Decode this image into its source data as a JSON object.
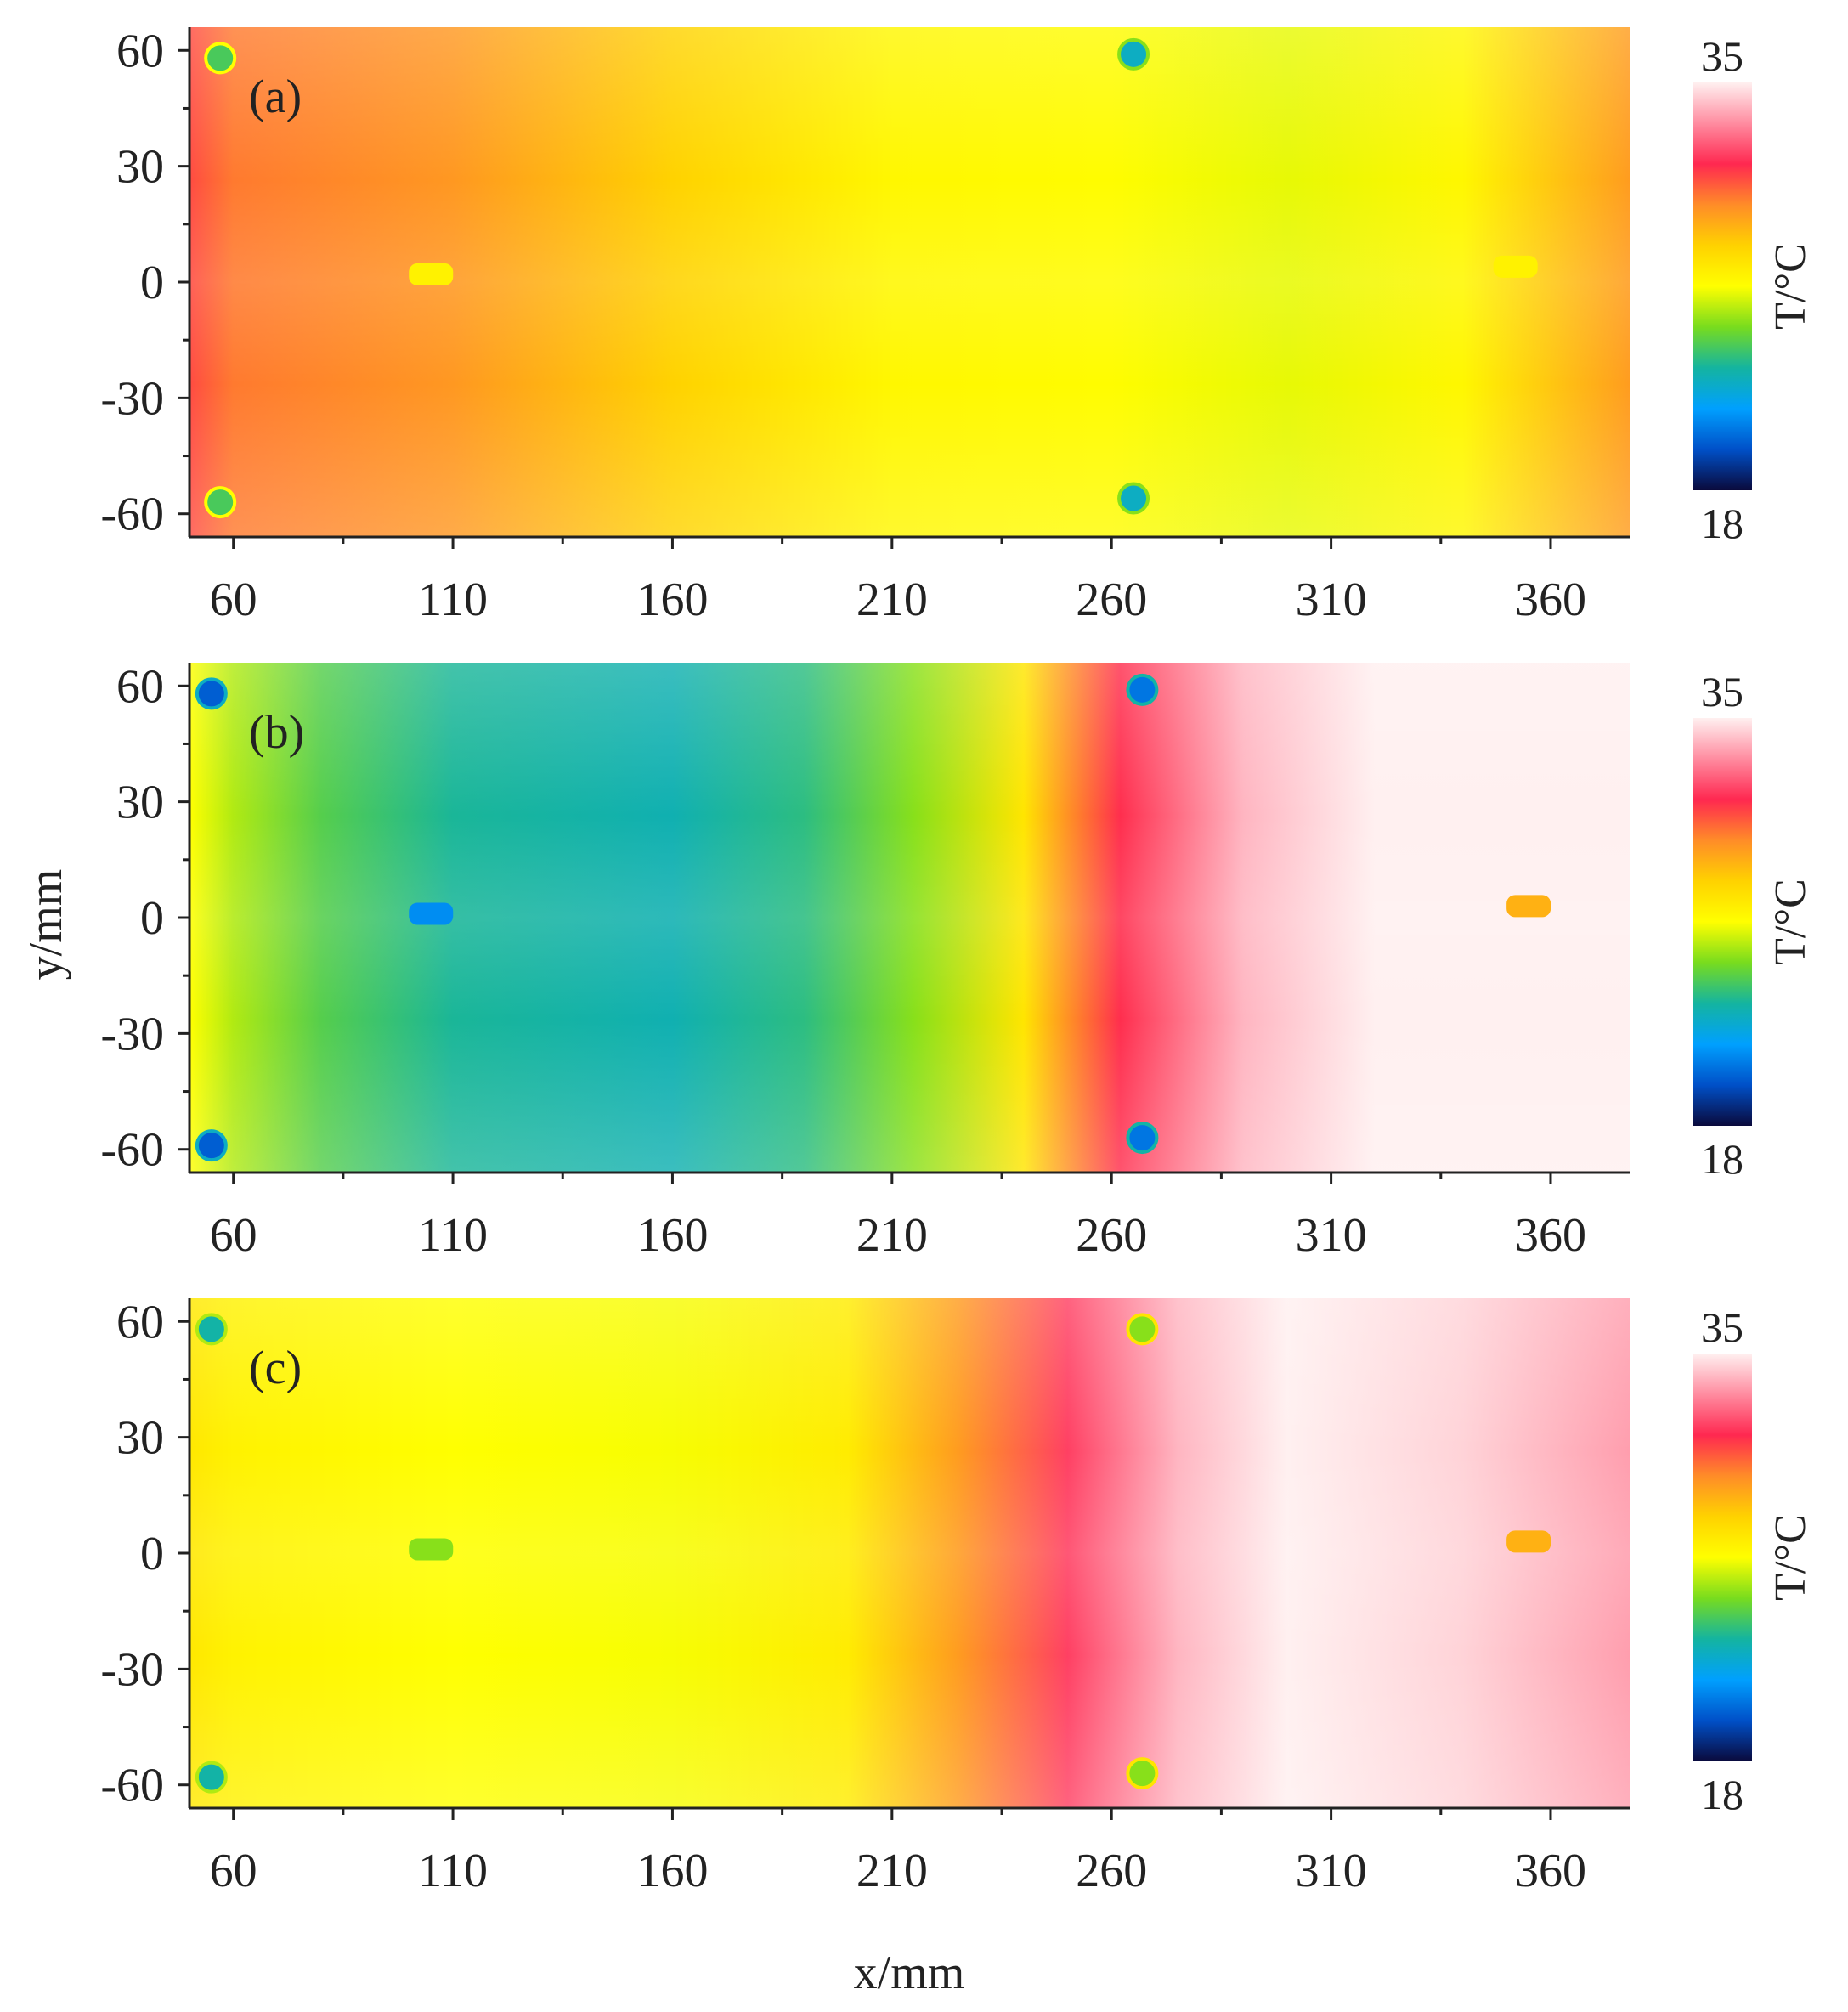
{
  "figure": {
    "xlabel": "x/mm",
    "ylabel": "y/mm"
  },
  "colors": {
    "colormap": [
      "#0a0a3c",
      "#0050c8",
      "#00a0ff",
      "#14b4a0",
      "#78dc1e",
      "#ffff00",
      "#ffd200",
      "#ff8c28",
      "#ff2850",
      "#ff8ca0",
      "#fff0f0"
    ]
  },
  "chart_data": [
    {
      "type": "heatmap",
      "panel_label": "(a)",
      "x_ticks": [
        "60",
        "110",
        "160",
        "210",
        "260",
        "310",
        "360"
      ],
      "y_ticks": [
        "60",
        "30",
        "0",
        "-30",
        "-60"
      ],
      "xlim": [
        50,
        378
      ],
      "ylim": [
        -66,
        66
      ],
      "colorbar": {
        "title": "T/°C",
        "min": "18",
        "max": "35"
      },
      "x_profile_mm": [
        50,
        60,
        110,
        160,
        210,
        260,
        300,
        340,
        378
      ],
      "x_profile_T": [
        31,
        30.2,
        29.6,
        28.2,
        26.8,
        26.6,
        26.2,
        26.8,
        29.5
      ],
      "markers": [
        {
          "x": 57,
          "y": 58,
          "T": 24
        },
        {
          "x": 57,
          "y": -57,
          "T": 24
        },
        {
          "x": 265,
          "y": 59,
          "T": 22.5
        },
        {
          "x": 265,
          "y": -56,
          "T": 22.5
        },
        {
          "x": 105,
          "y": 2,
          "T": 27
        },
        {
          "x": 352,
          "y": 4,
          "T": 27
        }
      ]
    },
    {
      "type": "heatmap",
      "panel_label": "(b)",
      "x_ticks": [
        "60",
        "110",
        "160",
        "210",
        "260",
        "310",
        "360"
      ],
      "y_ticks": [
        "60",
        "30",
        "0",
        "-30",
        "-60"
      ],
      "xlim": [
        50,
        378
      ],
      "ylim": [
        -66,
        66
      ],
      "colorbar": {
        "title": "T/°C",
        "min": "18",
        "max": "35"
      },
      "x_profile_mm": [
        50,
        60,
        80,
        110,
        160,
        190,
        215,
        240,
        262,
        290,
        320,
        378
      ],
      "x_profile_T": [
        26.5,
        25.5,
        24.2,
        23.2,
        22.8,
        23.5,
        25,
        27.5,
        31.5,
        34,
        35,
        35
      ],
      "markers": [
        {
          "x": 55,
          "y": 58,
          "T": 20
        },
        {
          "x": 55,
          "y": -59,
          "T": 20
        },
        {
          "x": 267,
          "y": 59,
          "T": 20.5
        },
        {
          "x": 267,
          "y": -57,
          "T": 20.5
        },
        {
          "x": 105,
          "y": 1,
          "T": 21
        },
        {
          "x": 355,
          "y": 3,
          "T": 29
        }
      ]
    },
    {
      "type": "heatmap",
      "panel_label": "(c)",
      "x_ticks": [
        "60",
        "110",
        "160",
        "210",
        "260",
        "310",
        "360"
      ],
      "y_ticks": [
        "60",
        "30",
        "0",
        "-30",
        "-60"
      ],
      "xlim": [
        50,
        378
      ],
      "ylim": [
        -66,
        66
      ],
      "colorbar": {
        "title": "T/°C",
        "min": "18",
        "max": "35"
      },
      "x_profile_mm": [
        50,
        60,
        110,
        160,
        200,
        225,
        250,
        275,
        300,
        340,
        378
      ],
      "x_profile_T": [
        27.4,
        27.0,
        26.5,
        26.4,
        27.2,
        29.5,
        32,
        34,
        35,
        34.5,
        33.6
      ],
      "markers": [
        {
          "x": 55,
          "y": 58,
          "T": 23
        },
        {
          "x": 55,
          "y": -58,
          "T": 23
        },
        {
          "x": 267,
          "y": 58,
          "T": 25
        },
        {
          "x": 267,
          "y": -57,
          "T": 25
        },
        {
          "x": 105,
          "y": 1,
          "T": 25
        },
        {
          "x": 355,
          "y": 3,
          "T": 29
        }
      ]
    }
  ]
}
